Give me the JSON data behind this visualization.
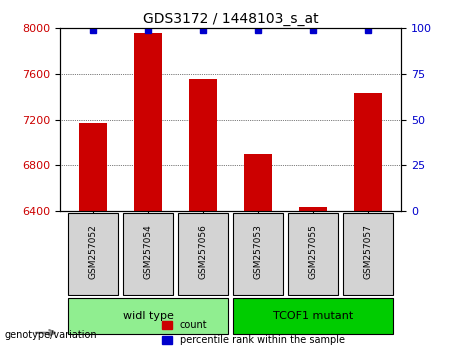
{
  "title": "GDS3172 / 1448103_s_at",
  "samples": [
    "GSM257052",
    "GSM257054",
    "GSM257056",
    "GSM257053",
    "GSM257055",
    "GSM257057"
  ],
  "counts": [
    7170,
    7960,
    7560,
    6900,
    6430,
    7430
  ],
  "percentiles": [
    99,
    99,
    99,
    99,
    99,
    99
  ],
  "ylim_left": [
    6400,
    8000
  ],
  "ylim_right": [
    0,
    100
  ],
  "yticks_left": [
    6400,
    6800,
    7200,
    7600,
    8000
  ],
  "yticks_right": [
    0,
    25,
    50,
    75,
    100
  ],
  "bar_color": "#cc0000",
  "percentile_color": "#0000cc",
  "grid_color": "#000000",
  "groups": [
    {
      "label": "widl type",
      "samples": [
        "GSM257052",
        "GSM257054",
        "GSM257056"
      ],
      "color": "#90ee90"
    },
    {
      "label": "TCOF1 mutant",
      "samples": [
        "GSM257053",
        "GSM257055",
        "GSM257057"
      ],
      "color": "#00cc00"
    }
  ],
  "group_label": "genotype/variation",
  "legend_count_label": "count",
  "legend_pct_label": "percentile rank within the sample",
  "tick_label_color_left": "#cc0000",
  "tick_label_color_right": "#0000cc",
  "bg_plot": "#ffffff",
  "bg_sample_boxes": "#d3d3d3",
  "sample_box_border": "#000000"
}
